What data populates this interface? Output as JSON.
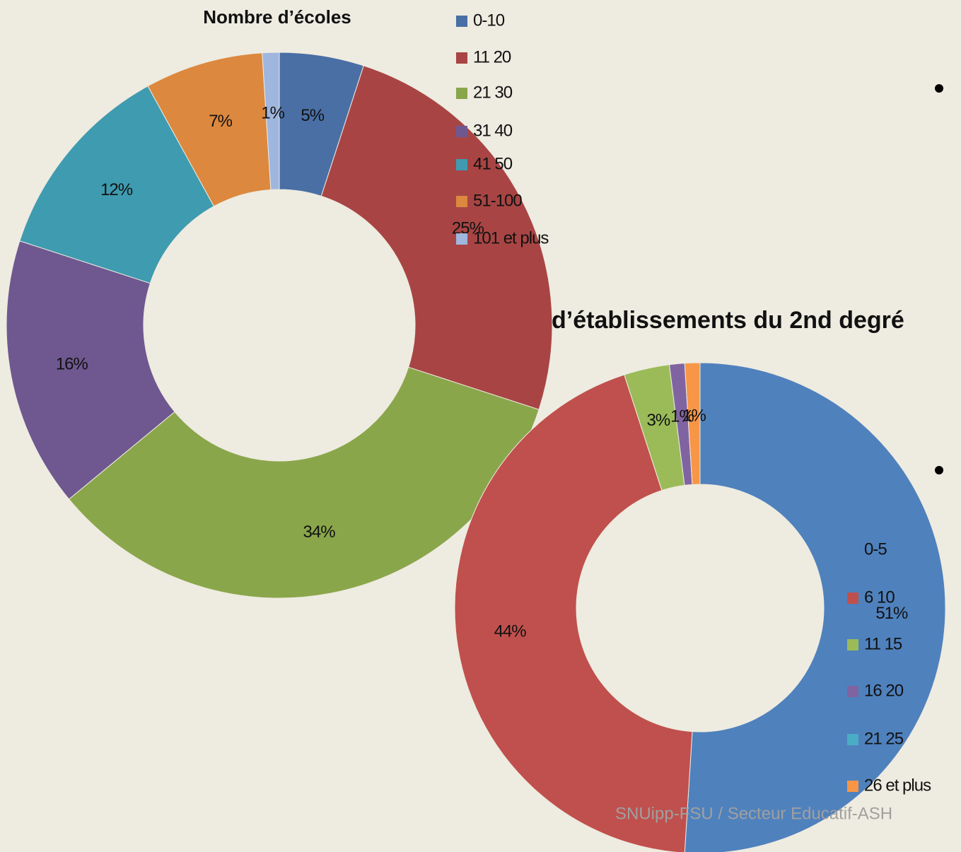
{
  "chart_data": [
    {
      "type": "donut",
      "title": "Nombre d’écoles",
      "categories": [
        "0-10",
        "11 20",
        "21 30",
        "31 40",
        "41 50",
        "51-100",
        "101 et plus"
      ],
      "values": [
        5,
        25,
        34,
        16,
        12,
        7,
        1
      ],
      "value_labels": [
        "5%",
        "25%",
        "34%",
        "16%",
        "12%",
        "7%",
        "1%"
      ],
      "colors": [
        "#4a6fa5",
        "#a84544",
        "#8aa64b",
        "#6f5890",
        "#3f9bb0",
        "#dc883e",
        "#9fb6de"
      ],
      "legend": "right"
    },
    {
      "type": "donut",
      "title": "d’établissements du 2nd degré",
      "categories": [
        "0-5",
        "6 10",
        "11 15",
        "16 20",
        "21 25",
        "26 et plus"
      ],
      "values": [
        51,
        44,
        3,
        1,
        0,
        1
      ],
      "value_labels": [
        "51%",
        "44%",
        "3%",
        "1%",
        null,
        "1%"
      ],
      "colors": [
        "#4f81bd",
        "#c0504d",
        "#9bbb59",
        "#8064a2",
        "#4bacc6",
        "#f79646"
      ],
      "legend": "right"
    }
  ],
  "footer": "SNUipp-FSU / Secteur Educatif-ASH"
}
